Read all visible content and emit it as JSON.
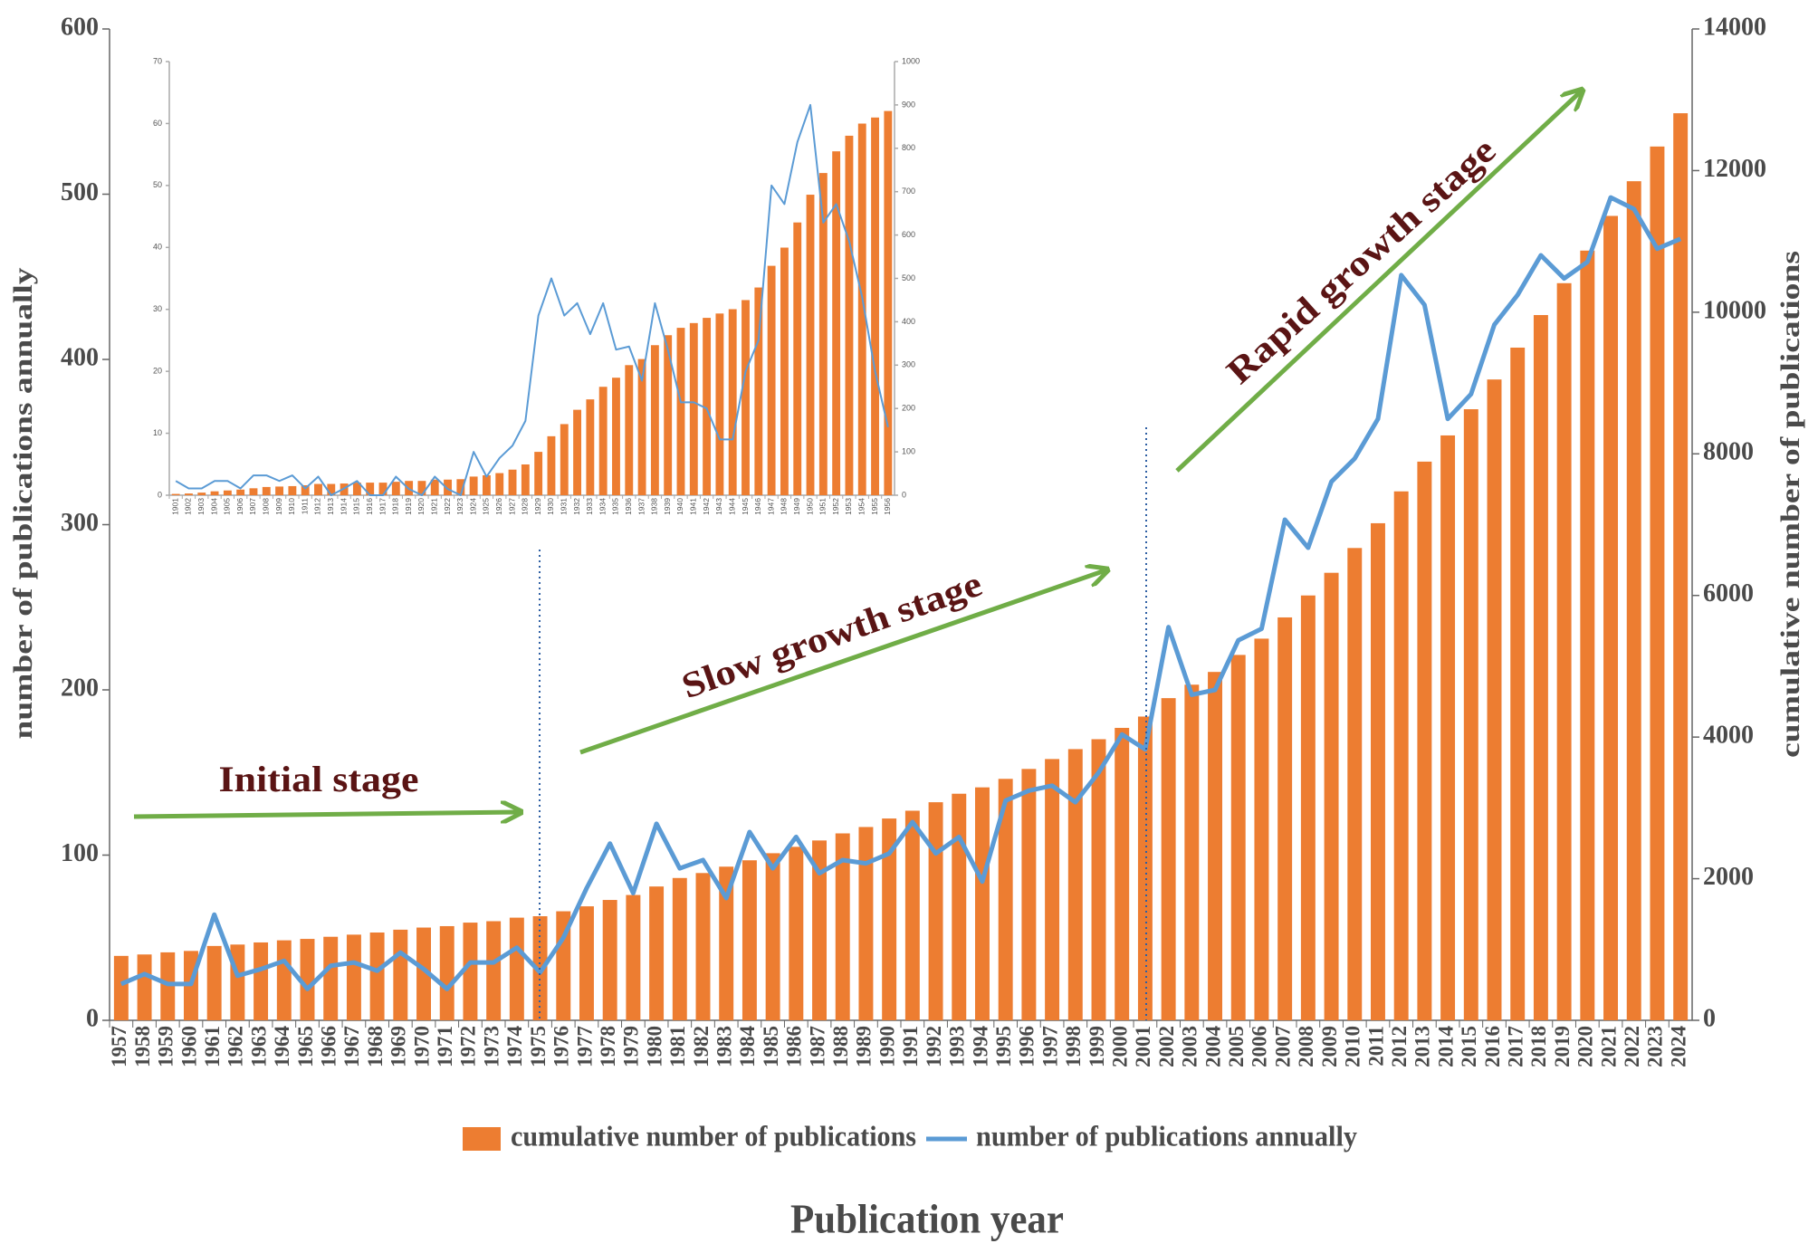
{
  "chart_data": [
    {
      "type": "combo",
      "x_label": "Publication year",
      "y_label": "number of publications annually",
      "y2_label": "cumulative number of publications",
      "annotations": [
        "Initial stage",
        "Slow growth stage",
        "Rapid growth stage"
      ],
      "legend": "bottom",
      "categories": [
        "1957",
        "1958",
        "1959",
        "1960",
        "1961",
        "1962",
        "1963",
        "1964",
        "1965",
        "1966",
        "1967",
        "1968",
        "1969",
        "1970",
        "1971",
        "1972",
        "1973",
        "1974",
        "1975",
        "1976",
        "1977",
        "1978",
        "1979",
        "1980",
        "1981",
        "1982",
        "1983",
        "1984",
        "1985",
        "1986",
        "1987",
        "1988",
        "1989",
        "1990",
        "1991",
        "1992",
        "1993",
        "1994",
        "1995",
        "1996",
        "1997",
        "1998",
        "1999",
        "2000",
        "2001",
        "2002",
        "2003",
        "2004",
        "2005",
        "2006",
        "2007",
        "2008",
        "2009",
        "2010",
        "2011",
        "2012",
        "2013",
        "2014",
        "2015",
        "2016",
        "2017",
        "2018",
        "2019",
        "2020",
        "2021",
        "2022",
        "2023",
        "2024"
      ],
      "series": [
        {
          "name": "cumulative number of publications",
          "type": "bar",
          "axis": "y2",
          "color": "#ed7d31",
          "values": [
            910,
            930,
            960,
            980,
            1050,
            1070,
            1100,
            1130,
            1150,
            1180,
            1210,
            1240,
            1280,
            1310,
            1330,
            1380,
            1400,
            1450,
            1470,
            1540,
            1610,
            1700,
            1770,
            1890,
            2010,
            2080,
            2170,
            2260,
            2360,
            2450,
            2540,
            2640,
            2730,
            2850,
            2960,
            3080,
            3200,
            3290,
            3410,
            3550,
            3690,
            3830,
            3970,
            4130,
            4290,
            4550,
            4740,
            4920,
            5160,
            5390,
            5690,
            6000,
            6320,
            6670,
            7020,
            7470,
            7890,
            8260,
            8630,
            9050,
            9500,
            9960,
            10410,
            10870,
            11360,
            11850,
            12340,
            12810
          ]
        },
        {
          "name": "number of publications annually",
          "type": "line",
          "color": "#5b9bd5",
          "values": [
            22,
            28,
            22,
            22,
            64,
            27,
            31,
            36,
            19,
            33,
            35,
            30,
            41,
            31,
            19,
            35,
            35,
            44,
            29,
            50,
            80,
            107,
            77,
            119,
            92,
            97,
            74,
            114,
            92,
            111,
            89,
            97,
            95,
            101,
            120,
            101,
            111,
            84,
            133,
            139,
            142,
            132,
            150,
            173,
            164,
            238,
            197,
            200,
            230,
            237,
            303,
            286,
            326,
            340,
            364,
            451,
            433,
            364,
            379,
            421,
            439,
            463,
            449,
            459,
            498,
            491,
            467,
            473
          ]
        }
      ],
      "ylim": [
        0,
        600
      ],
      "yticks": [
        0,
        100,
        200,
        300,
        400,
        500,
        600
      ],
      "y2lim": [
        0,
        14000
      ],
      "y2ticks": [
        0,
        2000,
        4000,
        6000,
        8000,
        10000,
        12000,
        14000
      ]
    },
    {
      "type": "combo",
      "categories": [
        "1901",
        "1902",
        "1903",
        "1904",
        "1905",
        "1906",
        "1907",
        "1908",
        "1909",
        "1910",
        "1911",
        "1912",
        "1913",
        "1914",
        "1915",
        "1916",
        "1917",
        "1918",
        "1919",
        "1920",
        "1921",
        "1922",
        "1923",
        "1924",
        "1925",
        "1926",
        "1927",
        "1928",
        "1929",
        "1930",
        "1931",
        "1932",
        "1933",
        "1934",
        "1935",
        "1936",
        "1937",
        "1938",
        "1939",
        "1940",
        "1941",
        "1942",
        "1943",
        "1944",
        "1945",
        "1946",
        "1947",
        "1948",
        "1949",
        "1950",
        "1951",
        "1952",
        "1953",
        "1954",
        "1955",
        "1956"
      ],
      "series": [
        {
          "type": "bar",
          "axis": "y2",
          "color": "#ed7d31",
          "values": [
            3,
            4,
            6,
            9,
            11,
            13,
            16,
            19,
            20,
            21,
            23,
            26,
            26,
            27,
            29,
            29,
            29,
            31,
            33,
            33,
            36,
            36,
            37,
            43,
            46,
            51,
            59,
            71,
            100,
            136,
            164,
            197,
            221,
            250,
            271,
            300,
            314,
            346,
            369,
            386,
            397,
            409,
            419,
            429,
            450,
            479,
            529,
            571,
            629,
            693,
            743,
            793,
            829,
            857,
            871,
            886
          ]
        },
        {
          "type": "line",
          "color": "#5b9bd5",
          "values": [
            2.3,
            1.1,
            1.1,
            2.3,
            2.3,
            1.1,
            3.2,
            3.2,
            2.3,
            3.2,
            1.1,
            3,
            0,
            1.1,
            2.3,
            0,
            0,
            3,
            1,
            0,
            3,
            1,
            0,
            7,
            3,
            6,
            8,
            12,
            29,
            35,
            29,
            31,
            26,
            31,
            23.5,
            24,
            18.5,
            31,
            23.5,
            15,
            15,
            14,
            9,
            9,
            20,
            25,
            50,
            47,
            57,
            63,
            44,
            47,
            41,
            32,
            20,
            11
          ]
        }
      ],
      "ylim": [
        0,
        70
      ],
      "yticks": [
        0,
        10,
        20,
        30,
        40,
        50,
        60,
        70
      ],
      "y2lim": [
        0,
        1000
      ],
      "y2ticks": [
        0,
        100,
        200,
        300,
        400,
        500,
        600,
        700,
        800,
        900,
        1000
      ]
    }
  ]
}
